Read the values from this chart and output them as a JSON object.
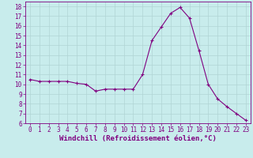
{
  "x": [
    0,
    1,
    2,
    3,
    4,
    5,
    6,
    7,
    8,
    9,
    10,
    11,
    12,
    13,
    14,
    15,
    16,
    17,
    18,
    19,
    20,
    21,
    22,
    23
  ],
  "y": [
    10.5,
    10.3,
    10.3,
    10.3,
    10.3,
    10.1,
    10.0,
    9.3,
    9.5,
    9.5,
    9.5,
    9.5,
    11.0,
    14.5,
    15.9,
    17.3,
    17.9,
    16.8,
    13.5,
    10.0,
    8.5,
    7.7,
    7.0,
    6.3
  ],
  "line_color": "#800080",
  "marker": "+",
  "marker_color": "#800080",
  "bg_color": "#c8ecec",
  "grid_color": "#b0d4d4",
  "xlabel": "Windchill (Refroidissement éolien,°C)",
  "xlim": [
    -0.5,
    23.5
  ],
  "ylim": [
    6.0,
    18.5
  ],
  "yticks": [
    6,
    7,
    8,
    9,
    10,
    11,
    12,
    13,
    14,
    15,
    16,
    17,
    18
  ],
  "xticks": [
    0,
    1,
    2,
    3,
    4,
    5,
    6,
    7,
    8,
    9,
    10,
    11,
    12,
    13,
    14,
    15,
    16,
    17,
    18,
    19,
    20,
    21,
    22,
    23
  ],
  "tick_fontsize": 5.5,
  "xlabel_fontsize": 6.5,
  "line_width": 0.8,
  "marker_size": 3.5
}
